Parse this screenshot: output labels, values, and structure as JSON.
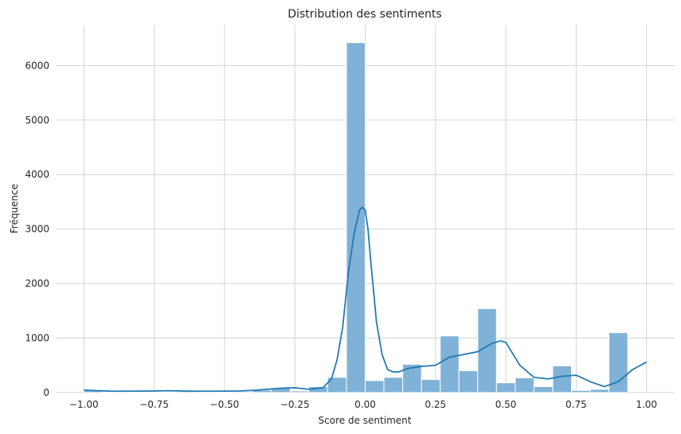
{
  "chart_data": {
    "type": "bar",
    "title": "Distribution des sentiments",
    "xlabel": "Score de sentiment",
    "ylabel": "Fréquence",
    "xlim": [
      -1.1,
      1.1
    ],
    "ylim": [
      0,
      6750
    ],
    "xticks": [
      -1.0,
      -0.75,
      -0.5,
      -0.25,
      0.0,
      0.25,
      0.5,
      0.75,
      1.0
    ],
    "xtick_labels": [
      "−1.00",
      "−0.75",
      "−0.50",
      "−0.25",
      "0.00",
      "0.25",
      "0.50",
      "0.75",
      "1.00"
    ],
    "yticks": [
      0,
      1000,
      2000,
      3000,
      4000,
      5000,
      6000
    ],
    "ytick_labels": [
      "0",
      "1000",
      "2000",
      "3000",
      "4000",
      "5000",
      "6000"
    ],
    "grid": true,
    "bar_color": "#7fb2d6",
    "line_color": "#1f77b4",
    "bins": {
      "start": -1.0,
      "width": 0.066667,
      "counts": [
        40,
        15,
        10,
        8,
        12,
        20,
        10,
        12,
        18,
        45,
        80,
        30,
        110,
        280,
        6420,
        220,
        280,
        520,
        240,
        1040,
        400,
        1540,
        180,
        270,
        110,
        490,
        40,
        60,
        1100
      ]
    },
    "kde": {
      "x": [
        -1.0,
        -0.95,
        -0.9,
        -0.85,
        -0.8,
        -0.75,
        -0.7,
        -0.65,
        -0.6,
        -0.55,
        -0.5,
        -0.45,
        -0.4,
        -0.35,
        -0.3,
        -0.25,
        -0.2,
        -0.15,
        -0.12,
        -0.1,
        -0.08,
        -0.06,
        -0.04,
        -0.02,
        -0.01,
        0.0,
        0.01,
        0.02,
        0.04,
        0.06,
        0.08,
        0.1,
        0.12,
        0.15,
        0.2,
        0.25,
        0.3,
        0.35,
        0.4,
        0.45,
        0.48,
        0.5,
        0.55,
        0.6,
        0.65,
        0.7,
        0.75,
        0.8,
        0.85,
        0.9,
        0.95,
        1.0
      ],
      "y": [
        45,
        35,
        25,
        25,
        28,
        30,
        35,
        30,
        25,
        25,
        28,
        30,
        40,
        60,
        80,
        90,
        60,
        90,
        250,
        600,
        1200,
        2200,
        2900,
        3350,
        3400,
        3350,
        3000,
        2400,
        1300,
        700,
        420,
        380,
        380,
        440,
        480,
        500,
        650,
        700,
        750,
        900,
        950,
        920,
        500,
        280,
        250,
        300,
        320,
        200,
        110,
        200,
        420,
        560
      ]
    }
  }
}
